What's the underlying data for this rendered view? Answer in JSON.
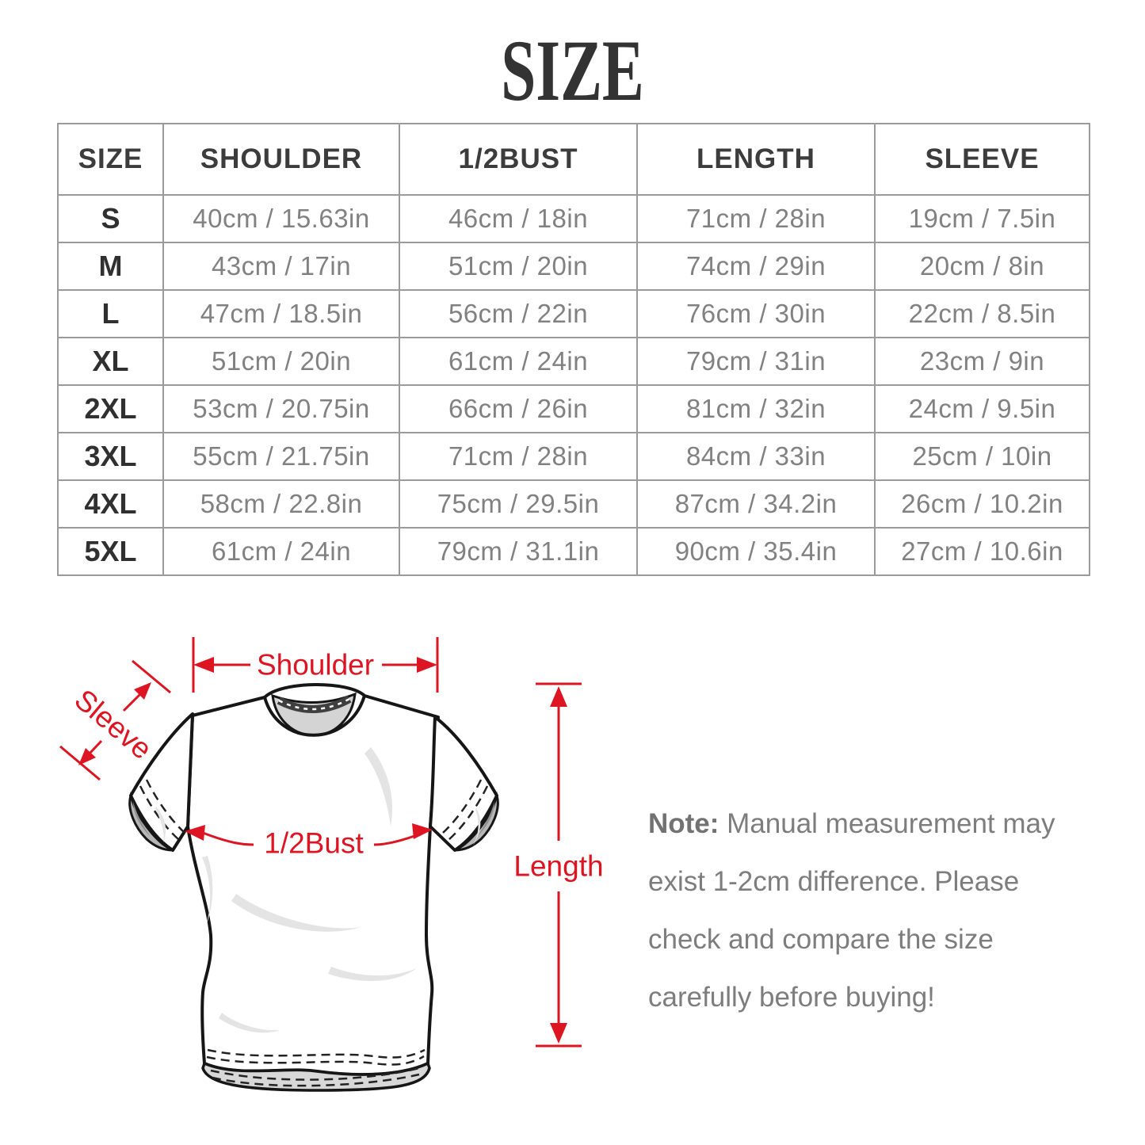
{
  "title": "SIZE",
  "table": {
    "headers": [
      "SIZE",
      "SHOULDER",
      "1/2BUST",
      "LENGTH",
      "SLEEVE"
    ],
    "rows": [
      [
        "S",
        "40cm / 15.63in",
        "46cm / 18in",
        "71cm / 28in",
        "19cm / 7.5in"
      ],
      [
        "M",
        "43cm / 17in",
        "51cm / 20in",
        "74cm / 29in",
        "20cm / 8in"
      ],
      [
        "L",
        "47cm / 18.5in",
        "56cm / 22in",
        "76cm / 30in",
        "22cm / 8.5in"
      ],
      [
        "XL",
        "51cm / 20in",
        "61cm / 24in",
        "79cm / 31in",
        "23cm / 9in"
      ],
      [
        "2XL",
        "53cm / 20.75in",
        "66cm / 26in",
        "81cm / 32in",
        "24cm / 9.5in"
      ],
      [
        "3XL",
        "55cm / 21.75in",
        "71cm / 28in",
        "84cm / 33in",
        "25cm / 10in"
      ],
      [
        "4XL",
        "58cm / 22.8in",
        "75cm / 29.5in",
        "87cm / 34.2in",
        "26cm / 10.2in"
      ],
      [
        "5XL",
        "61cm / 24in",
        "79cm / 31.1in",
        "90cm / 35.4in",
        "27cm / 10.6in"
      ]
    ]
  },
  "diagram": {
    "labels": {
      "shoulder": "Shoulder",
      "sleeve": "Sleeve",
      "bust": "1/2Bust",
      "length": "Length"
    }
  },
  "note": {
    "prefix": "Note:",
    "body": " Manual measurement may exist 1-2cm difference. Please check and compare the size carefully before buying!"
  },
  "colors": {
    "accent": "#dd1522",
    "table_border": "#9a9a9a"
  }
}
